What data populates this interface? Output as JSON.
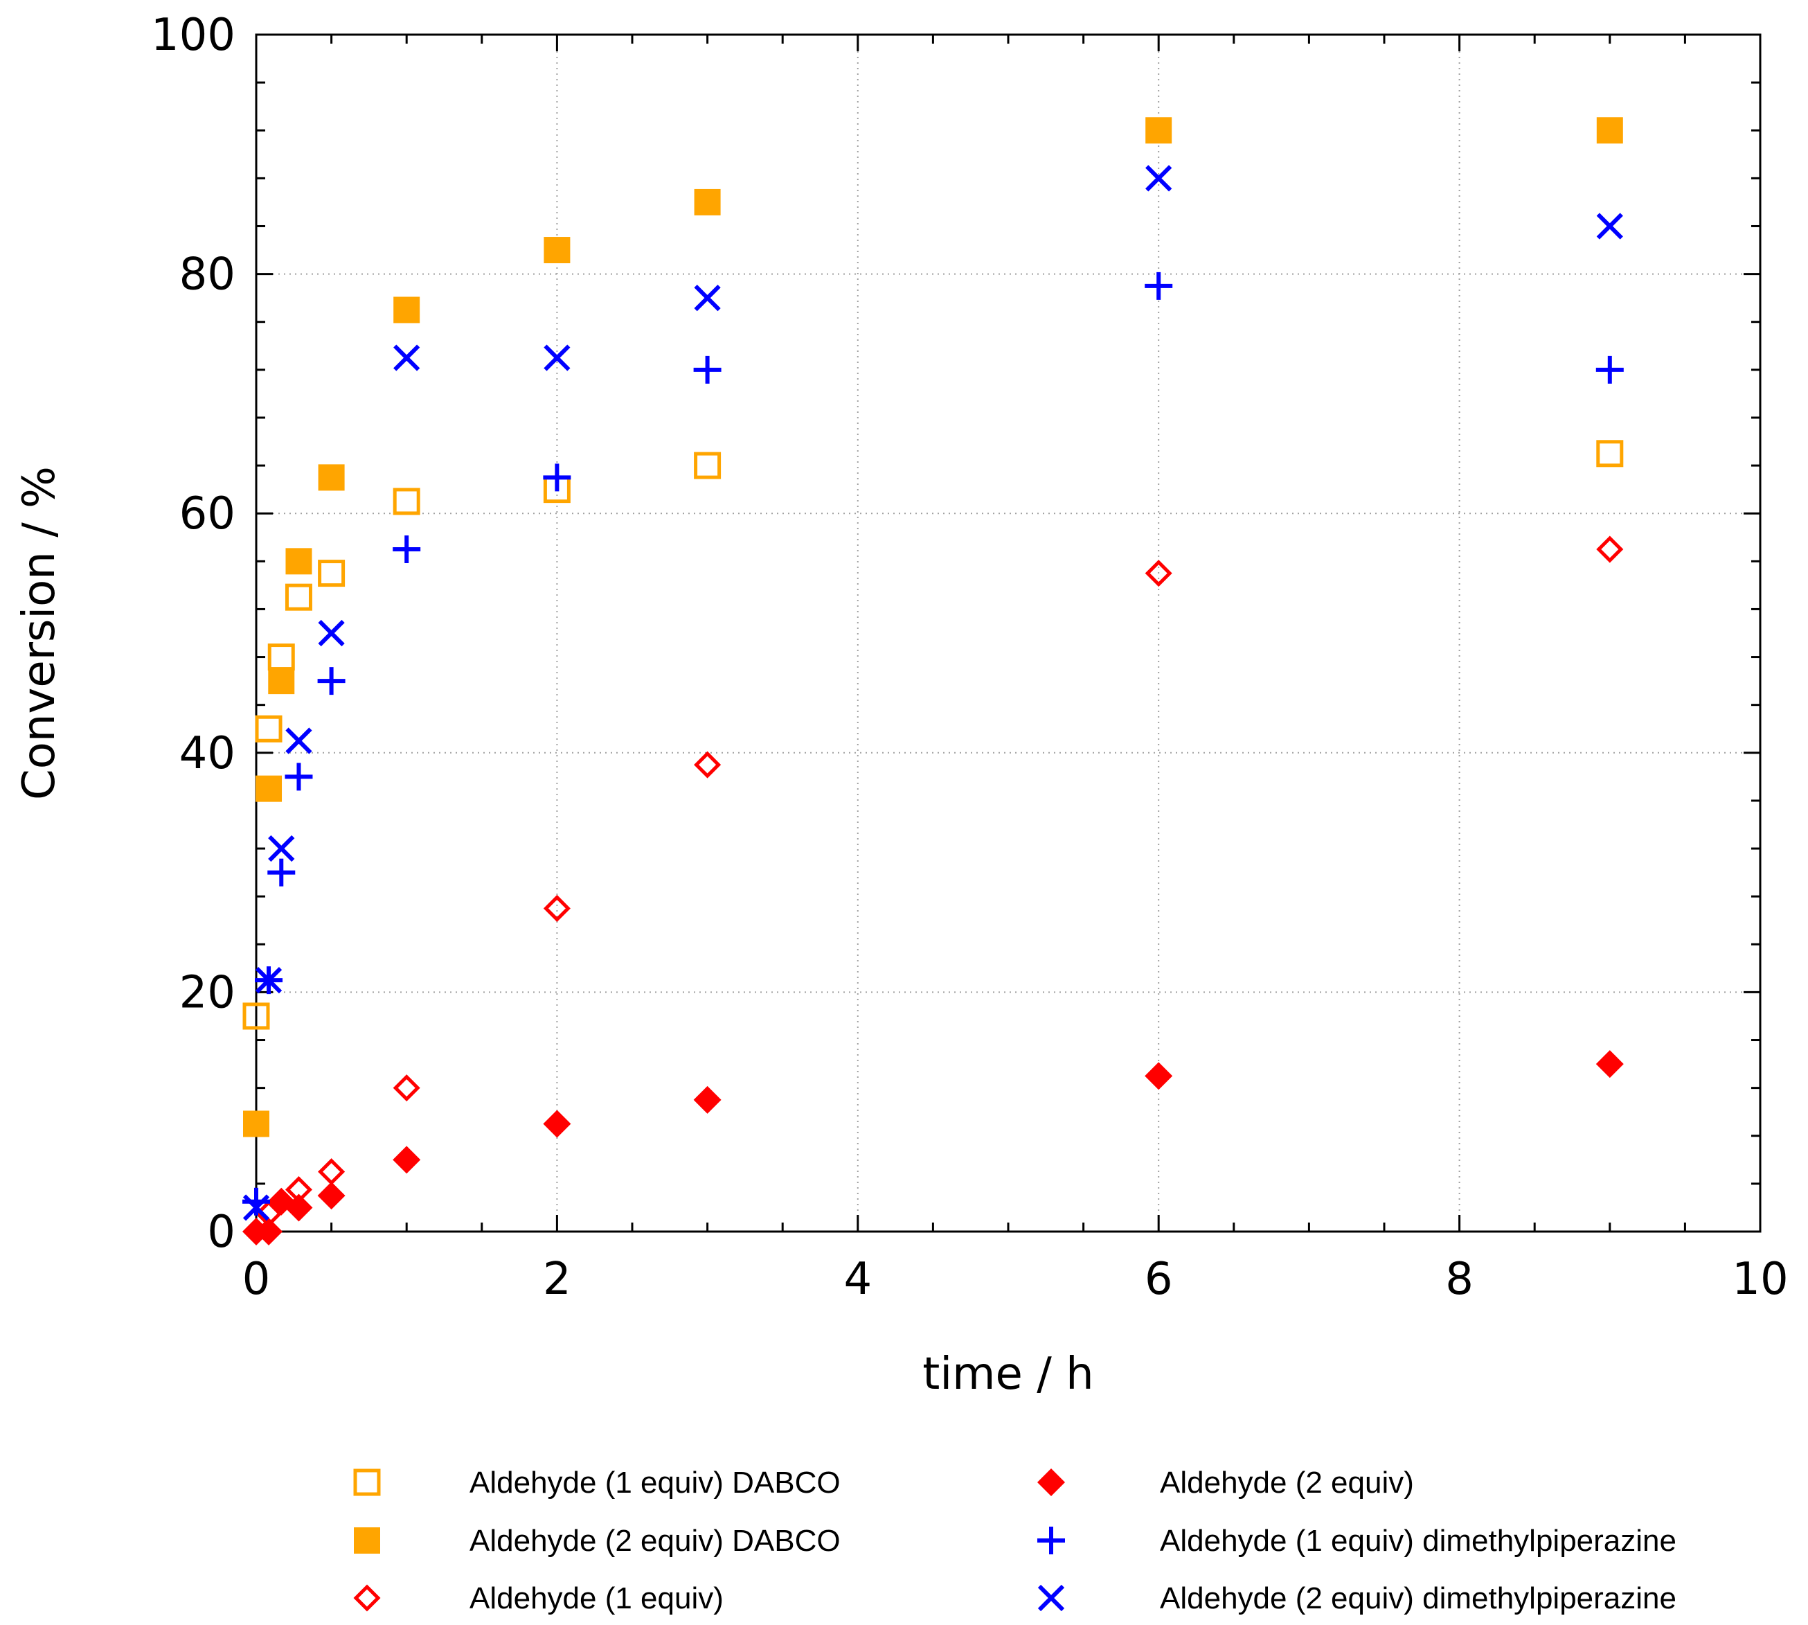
{
  "chart_data": {
    "type": "scatter",
    "title": "",
    "xlabel": "time / h",
    "ylabel": "Conversion / %",
    "xlim": [
      0,
      10
    ],
    "ylim": [
      0,
      100
    ],
    "xticks": [
      0,
      2,
      4,
      6,
      8,
      10
    ],
    "yticks": [
      0,
      20,
      40,
      60,
      80,
      100
    ],
    "xtick_labels": [
      "0",
      "2",
      "4",
      "6",
      "8",
      "10"
    ],
    "ytick_labels": [
      "0",
      "20",
      "40",
      "60",
      "80",
      "100"
    ],
    "grid": true,
    "legend_position": "bottom",
    "series": [
      {
        "name": "Aldehyde (1 equiv) DABCO",
        "marker": "open-square",
        "color": "#ffa500",
        "x": [
          0,
          0.083,
          0.167,
          0.283,
          0.5,
          1,
          2,
          3,
          9
        ],
        "y": [
          18,
          42,
          48,
          53,
          55,
          61,
          62,
          64,
          65
        ]
      },
      {
        "name": "Aldehyde (2 equiv) DABCO",
        "marker": "filled-square",
        "color": "#ffa500",
        "x": [
          0,
          0.083,
          0.167,
          0.283,
          0.5,
          1,
          2,
          3,
          6,
          9
        ],
        "y": [
          9,
          37,
          46,
          56,
          63,
          77,
          82,
          86,
          92,
          92
        ]
      },
      {
        "name": "Aldehyde (1 equiv)",
        "marker": "open-diamond",
        "color": "#ff0000",
        "x": [
          0,
          0.083,
          0.167,
          0.283,
          0.5,
          1,
          2,
          3,
          6,
          9
        ],
        "y": [
          0,
          1.5,
          2.5,
          3.5,
          5,
          12,
          27,
          39,
          55,
          57
        ]
      },
      {
        "name": "Aldehyde (2 equiv)",
        "marker": "filled-diamond",
        "color": "#ff0000",
        "x": [
          0,
          0.083,
          0.167,
          0.283,
          0.5,
          1,
          2,
          3,
          6,
          9
        ],
        "y": [
          0,
          0,
          2.5,
          2,
          3,
          6,
          9,
          11,
          13,
          14
        ]
      },
      {
        "name": "Aldehyde (1 equiv) dimethylpiperazine",
        "marker": "plus",
        "color": "#0000ff",
        "x": [
          0,
          0.083,
          0.167,
          0.283,
          0.5,
          1,
          2,
          3,
          6,
          9
        ],
        "y": [
          2.5,
          21,
          30,
          38,
          46,
          57,
          63,
          72,
          79,
          72
        ]
      },
      {
        "name": "Aldehyde (2 equiv) dimethylpiperazine",
        "marker": "cross",
        "color": "#0000ff",
        "x": [
          0,
          0.083,
          0.167,
          0.283,
          0.5,
          1,
          2,
          3,
          6,
          9
        ],
        "y": [
          2,
          21,
          32,
          41,
          50,
          73,
          73,
          78,
          88,
          84
        ]
      }
    ]
  }
}
